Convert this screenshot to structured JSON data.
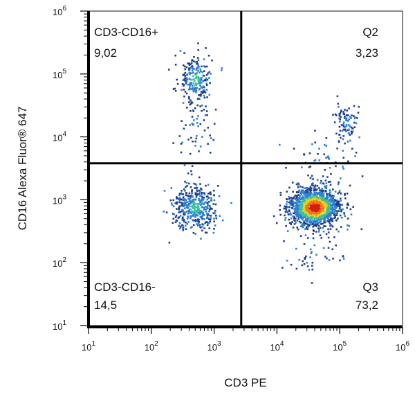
{
  "chart_data": {
    "type": "scatter",
    "subtype": "flow-cytometry density dot plot",
    "xlabel": "CD3 PE",
    "ylabel": "CD16 Alexa Fluor® 647",
    "xscale": "log",
    "yscale": "log",
    "xlim": [
      10,
      1000000
    ],
    "ylim": [
      10,
      1000000
    ],
    "x_ticks": [
      {
        "value": 10,
        "base": "10",
        "exp": "1"
      },
      {
        "value": 100,
        "base": "10",
        "exp": "2"
      },
      {
        "value": 1000,
        "base": "10",
        "exp": "3"
      },
      {
        "value": 10000,
        "base": "10",
        "exp": "4"
      },
      {
        "value": 100000,
        "base": "10",
        "exp": "5"
      },
      {
        "value": 1000000,
        "base": "10",
        "exp": "6"
      }
    ],
    "y_ticks": [
      {
        "value": 10,
        "base": "10",
        "exp": "1"
      },
      {
        "value": 100,
        "base": "10",
        "exp": "2"
      },
      {
        "value": 1000,
        "base": "10",
        "exp": "3"
      },
      {
        "value": 10000,
        "base": "10",
        "exp": "4"
      },
      {
        "value": 100000,
        "base": "10",
        "exp": "5"
      },
      {
        "value": 1000000,
        "base": "10",
        "exp": "6"
      }
    ],
    "gates": {
      "x_divider": 2700,
      "y_divider": 3800
    },
    "quadrants": [
      {
        "name": "CD3-CD16+",
        "value": "9,02",
        "position": "top-left"
      },
      {
        "name": "Q2",
        "value": "3,23",
        "position": "top-right"
      },
      {
        "name": "CD3-CD16-",
        "value": "14,5",
        "position": "bottom-left"
      },
      {
        "name": "Q3",
        "value": "73,2",
        "position": "bottom-right"
      }
    ],
    "clusters": [
      {
        "x": 500,
        "y": 80000,
        "sx": 0.13,
        "sy": 0.2,
        "n": 220
      },
      {
        "x": 520,
        "y": 15000,
        "sx": 0.14,
        "sy": 0.3,
        "n": 60
      },
      {
        "x": 500,
        "y": 750,
        "sx": 0.19,
        "sy": 0.17,
        "n": 420
      },
      {
        "x": 40000,
        "y": 750,
        "sx": 0.2,
        "sy": 0.15,
        "n": 1500
      },
      {
        "x": 60000,
        "y": 4000,
        "sx": 0.3,
        "sy": 0.18,
        "n": 60
      },
      {
        "x": 130000,
        "y": 17000,
        "sx": 0.08,
        "sy": 0.16,
        "n": 90
      },
      {
        "x": 40000,
        "y": 150,
        "sx": 0.22,
        "sy": 0.22,
        "n": 50
      }
    ],
    "density_colors": [
      "#1f3d8c",
      "#2f7fd0",
      "#3cc0a0",
      "#e8d020",
      "#f07a1a",
      "#d41e10"
    ],
    "grid": false,
    "legend": "none"
  }
}
